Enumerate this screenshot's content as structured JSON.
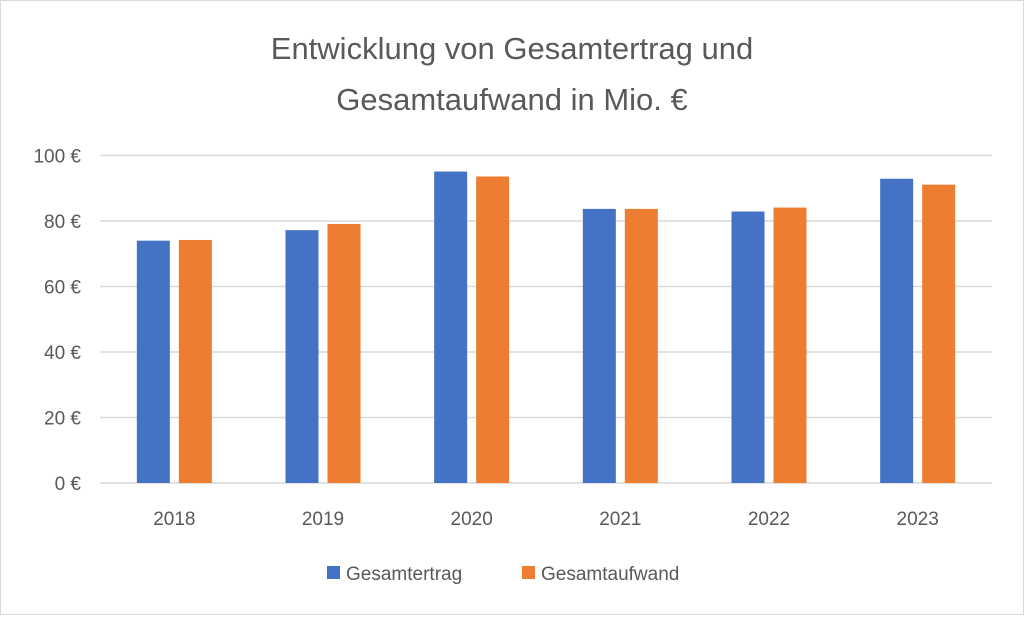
{
  "chart_data": {
    "type": "bar",
    "title_lines": [
      "Entwicklung von Gesamtertrag und",
      "Gesamtaufwand in Mio. €"
    ],
    "categories": [
      "2018",
      "2019",
      "2020",
      "2021",
      "2022",
      "2023"
    ],
    "series": [
      {
        "name": "Gesamtertrag",
        "color": "#4472c4",
        "values": [
          74.0,
          77.2,
          95.1,
          83.7,
          82.9,
          92.9
        ]
      },
      {
        "name": "Gesamtaufwand",
        "color": "#ed7d31",
        "values": [
          74.2,
          79.1,
          93.6,
          83.7,
          84.1,
          91.1
        ]
      }
    ],
    "ylim": [
      0,
      100
    ],
    "yticks": [
      0,
      20,
      40,
      60,
      80,
      100
    ],
    "ytick_labels": [
      "0 €",
      "20 €",
      "40 €",
      "60 €",
      "80 €",
      "100 €"
    ],
    "xlabel": "",
    "ylabel": "",
    "grid": true,
    "legend": "bottom"
  }
}
